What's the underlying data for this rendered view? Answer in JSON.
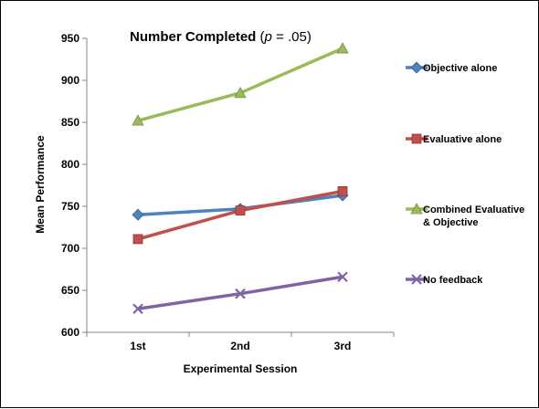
{
  "chart_data": {
    "type": "line",
    "title": {
      "main": "Number Completed",
      "open": " (",
      "italic": "p",
      "rest": " = .05)"
    },
    "xlabel": "Experimental Session",
    "ylabel": "Mean Performance",
    "categories": [
      "1st",
      "2nd",
      "3rd"
    ],
    "ylim": [
      600,
      950
    ],
    "yticks": [
      600,
      650,
      700,
      750,
      800,
      850,
      900,
      950
    ],
    "grid": false,
    "legend_position": "right",
    "series": [
      {
        "name": "Objective alone",
        "values": [
          740,
          747,
          763
        ],
        "color": "#4F81BD",
        "marker": "diamond"
      },
      {
        "name": "Evaluative alone",
        "values": [
          711,
          745,
          768
        ],
        "color": "#C0504D",
        "marker": "square"
      },
      {
        "name": "Combined Evaluative & Objective",
        "name_lines": [
          "Combined Evaluative",
          "& Objective"
        ],
        "values": [
          852,
          885,
          938
        ],
        "color": "#9BBB59",
        "marker": "triangle"
      },
      {
        "name": "No feedback",
        "values": [
          628,
          646,
          666
        ],
        "color": "#8064A2",
        "marker": "x"
      }
    ]
  }
}
